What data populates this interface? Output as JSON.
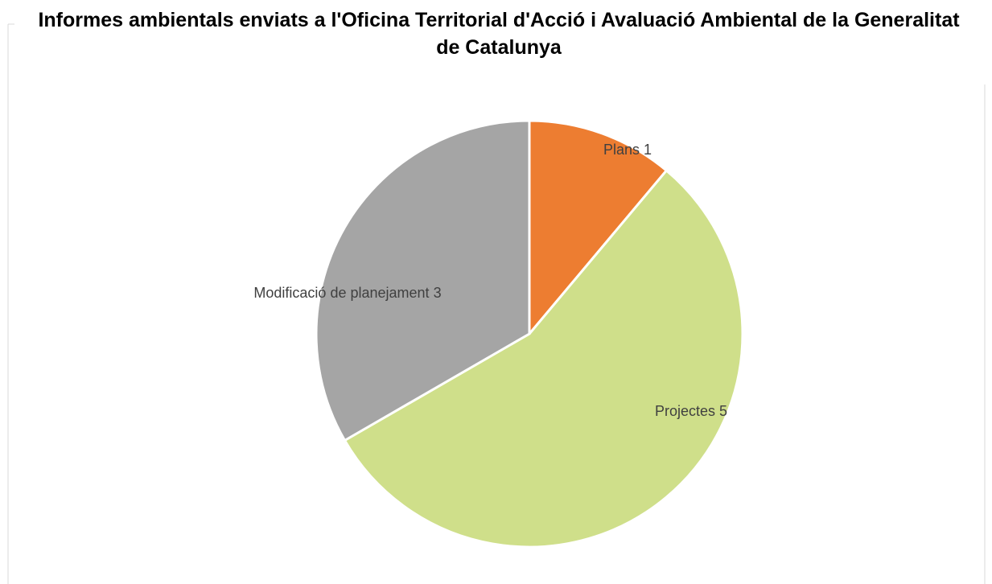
{
  "chart_data": {
    "type": "pie",
    "title": "Informes ambientals enviats a l'Oficina Territorial d'Acció i Avaluació Ambiental de la Generalitat de Catalunya",
    "categories": [
      "Plans",
      "Projectes",
      "Modificació de planejament"
    ],
    "values": [
      1,
      5,
      3
    ],
    "colors": [
      "#ed7d31",
      "#cfdf8a",
      "#a5a5a5"
    ]
  }
}
